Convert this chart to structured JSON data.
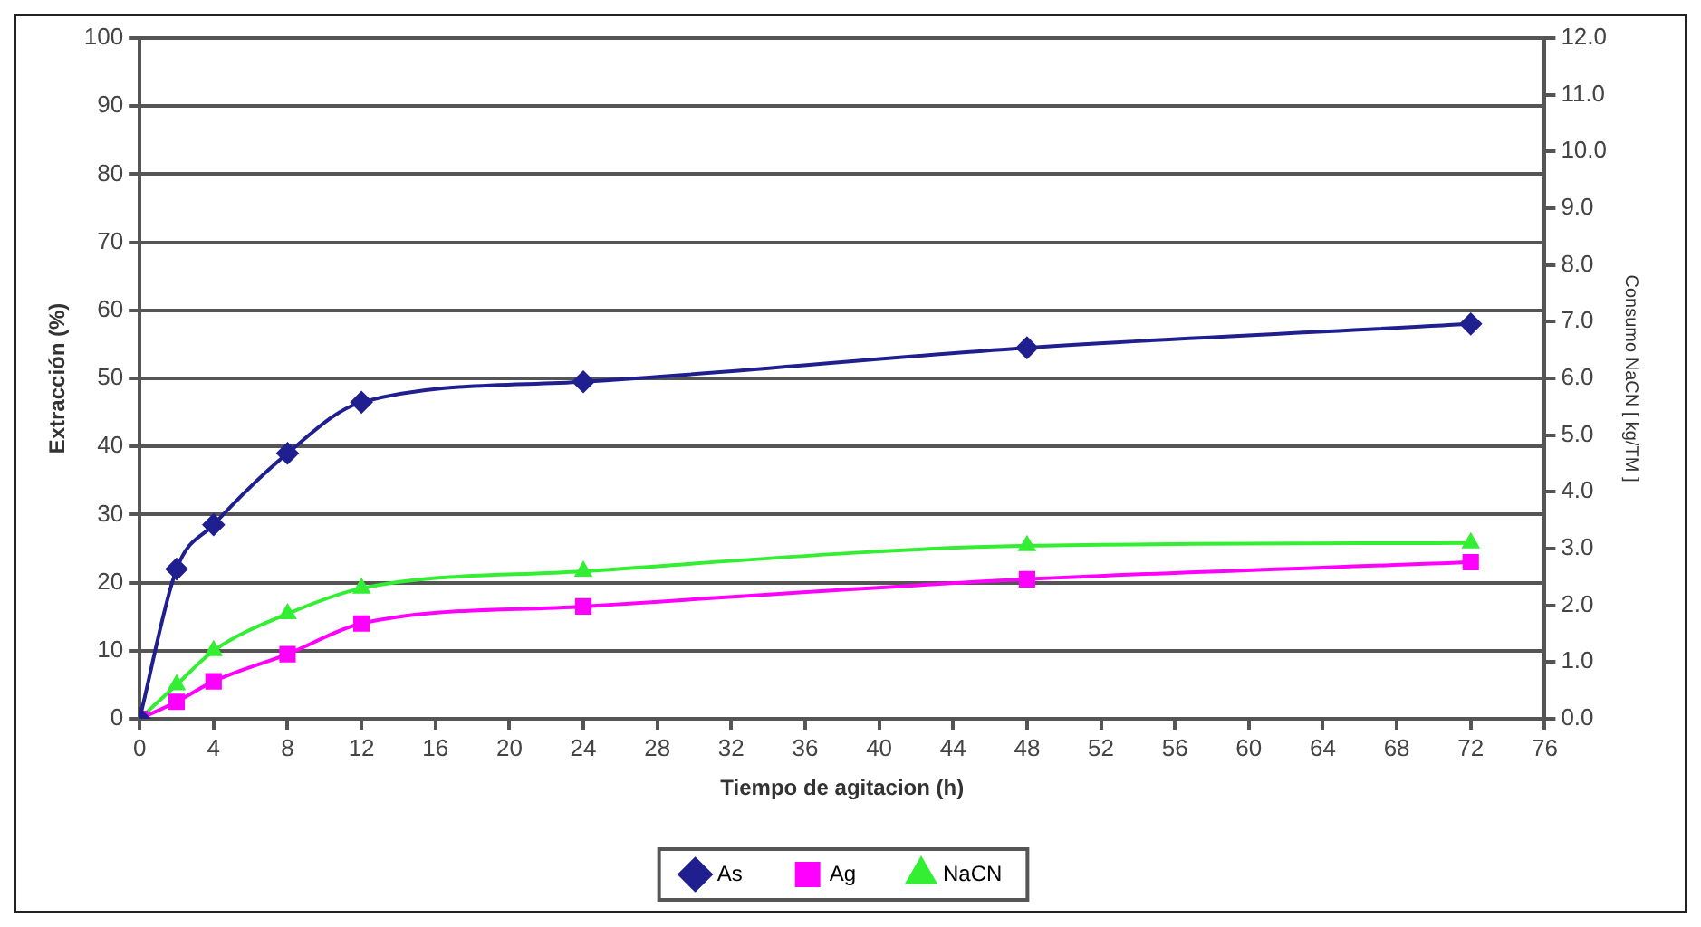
{
  "chart_data": {
    "type": "line",
    "xlabel": "Tiempo de agitacion (h)",
    "ylabel": "Extracción (%)",
    "y2label": "Consumo NaCN [ kg/TM ]",
    "x": [
      0,
      2,
      4,
      8,
      12,
      24,
      48,
      72
    ],
    "series": [
      {
        "name": "As",
        "color": "#1f1f8f",
        "marker": "diamond",
        "values": [
          0,
          22,
          28.5,
          39,
          46.5,
          49.5,
          54.5,
          58
        ]
      },
      {
        "name": "Ag",
        "color": "#ff00ff",
        "marker": "square",
        "values": [
          0,
          2.5,
          5.5,
          9.5,
          14,
          16.5,
          20.5,
          23
        ]
      },
      {
        "name": "NaCN",
        "color": "#33ee33",
        "marker": "triangle",
        "axis": "y2",
        "values": [
          0,
          0.6,
          1.2,
          1.85,
          2.3,
          2.6,
          3.05,
          3.1
        ]
      }
    ],
    "xlim": [
      0,
      76
    ],
    "xticks": [
      0,
      4,
      8,
      12,
      16,
      20,
      24,
      28,
      32,
      36,
      40,
      44,
      48,
      52,
      56,
      60,
      64,
      68,
      72,
      76
    ],
    "ylim": [
      0,
      100
    ],
    "yticks": [
      0,
      10,
      20,
      30,
      40,
      50,
      60,
      70,
      80,
      90,
      100
    ],
    "y2lim": [
      0,
      12
    ],
    "y2ticks": [
      {
        "value": 0,
        "label": "0.0"
      },
      {
        "value": 1,
        "label": "1.0"
      },
      {
        "value": 2,
        "label": "2.0"
      },
      {
        "value": 3,
        "label": "3.0"
      },
      {
        "value": 4,
        "label": "4.0"
      },
      {
        "value": 5,
        "label": "5.0"
      },
      {
        "value": 6,
        "label": "6.0"
      },
      {
        "value": 7,
        "label": "7.0"
      },
      {
        "value": 8,
        "label": "8.0"
      },
      {
        "value": 9,
        "label": "9.0"
      },
      {
        "value": 10,
        "label": "10.0"
      },
      {
        "value": 11,
        "label": "11.0"
      },
      {
        "value": 12,
        "label": "12.0"
      }
    ],
    "grid": "y",
    "legend": "bottom"
  }
}
